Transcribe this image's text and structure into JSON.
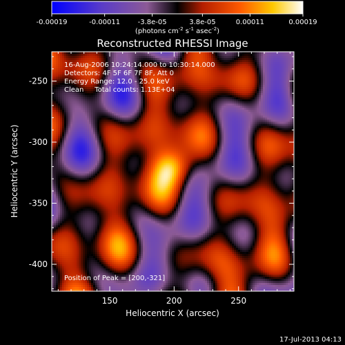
{
  "colorbar": {
    "tick_labels": [
      "-0.00019",
      "-0.00011",
      "-3.8e-05",
      "3.8e-05",
      "0.00011",
      "0.00019"
    ],
    "tick_values": [
      -0.00019,
      -0.00011,
      -3.8e-05,
      3.8e-05,
      0.00011,
      0.00019
    ],
    "units_base": "(photons cm",
    "units_exp1": "-2",
    "units_mid": " s",
    "units_exp2": "-1",
    "units_mid2": " asec",
    "units_exp3": "-2",
    "units_end": ")"
  },
  "chart_data": {
    "type": "heatmap",
    "title": "Reconstructed RHESSI Image",
    "xlabel": "Heliocentric X (arcsec)",
    "ylabel": "Heliocentric Y (arcsec)",
    "xlim": [
      105,
      293
    ],
    "ylim": [
      -422,
      -226
    ],
    "x_ticks": [
      "150",
      "200",
      "250"
    ],
    "x_tick_values": [
      150,
      200,
      250
    ],
    "y_ticks": [
      "-250",
      "-300",
      "-350",
      "-400"
    ],
    "y_tick_values": [
      -250,
      -300,
      -350,
      -400
    ],
    "value_range": [
      -0.00019,
      0.00019
    ],
    "colormap": [
      "#0000ff",
      "#5a3cc8",
      "#8c5a96",
      "#000000",
      "#b41e00",
      "#ff5a00",
      "#ffc800",
      "#ffffff"
    ],
    "peak_position": [
      200,
      -321
    ],
    "annotations": [
      "16-Aug-2006 10:24:14.000 to 10:30:14.000",
      "Detectors: 4F 5F 6F 7F 8F, Att 0",
      "Energy Range: 12.0 - 25.0 keV",
      "Clean     Total counts: 1.13E+04",
      "Position of Peak = [200,-321]"
    ]
  },
  "footer": {
    "timestamp": "17-Jul-2013 04:13"
  }
}
